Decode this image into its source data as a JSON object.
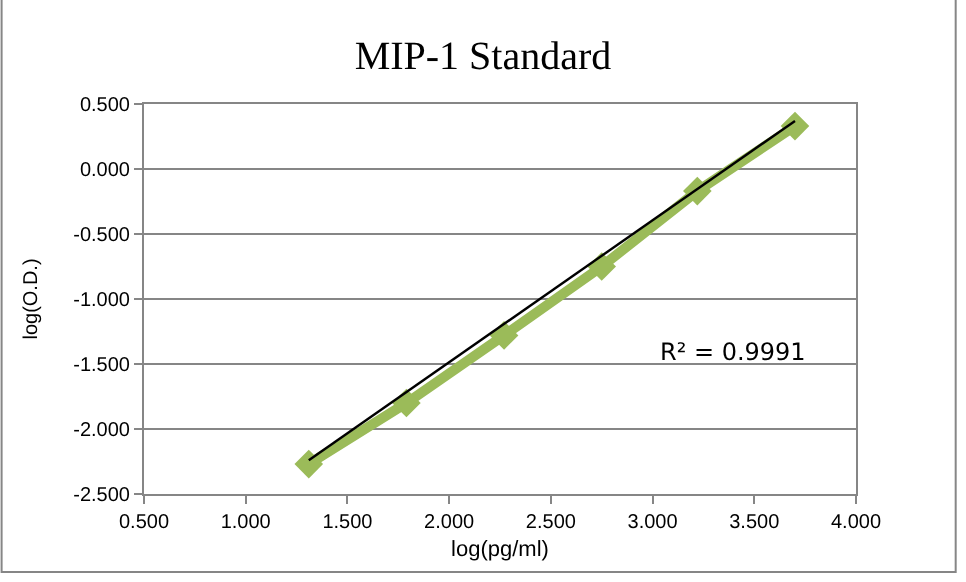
{
  "chart_data": {
    "type": "line",
    "title": "MIP-1 Standard",
    "xlabel": "log(pg/ml)",
    "ylabel": "log(O.D.)",
    "x": [
      1.31,
      1.79,
      2.27,
      2.75,
      3.22,
      3.7
    ],
    "series": [
      {
        "color": "#9bbb59",
        "values": [
          -2.27,
          -1.8,
          -1.28,
          -0.75,
          -0.17,
          0.33
        ],
        "marker": "diamond"
      },
      {
        "type": "line",
        "color": "#000000",
        "x": [
          1.31,
          3.7
        ],
        "values": [
          -2.24,
          0.37
        ],
        "marker": "none"
      }
    ],
    "annotations": [
      "R² = 0.9991"
    ],
    "xlim": [
      0.5,
      4.0
    ],
    "xticks": [
      {
        "value": 0.5,
        "label": "0.500"
      },
      {
        "value": 1.0,
        "label": "1.000"
      },
      {
        "value": 1.5,
        "label": "1.500"
      },
      {
        "value": 2.0,
        "label": "2.000"
      },
      {
        "value": 2.5,
        "label": "2.500"
      },
      {
        "value": 3.0,
        "label": "3.000"
      },
      {
        "value": 3.5,
        "label": "3.500"
      },
      {
        "value": 4.0,
        "label": "4.000"
      }
    ],
    "ylim": [
      -2.5,
      0.5
    ],
    "yticks": [
      {
        "value": -2.5,
        "label": "-2.500"
      },
      {
        "value": -2.0,
        "label": "-2.000"
      },
      {
        "value": -1.5,
        "label": "-1.500"
      },
      {
        "value": -1.0,
        "label": "-1.000"
      },
      {
        "value": -0.5,
        "label": "-0.500"
      },
      {
        "value": 0.0,
        "label": "0.000"
      },
      {
        "value": 0.5,
        "label": "0.500"
      }
    ],
    "grid": "y"
  }
}
